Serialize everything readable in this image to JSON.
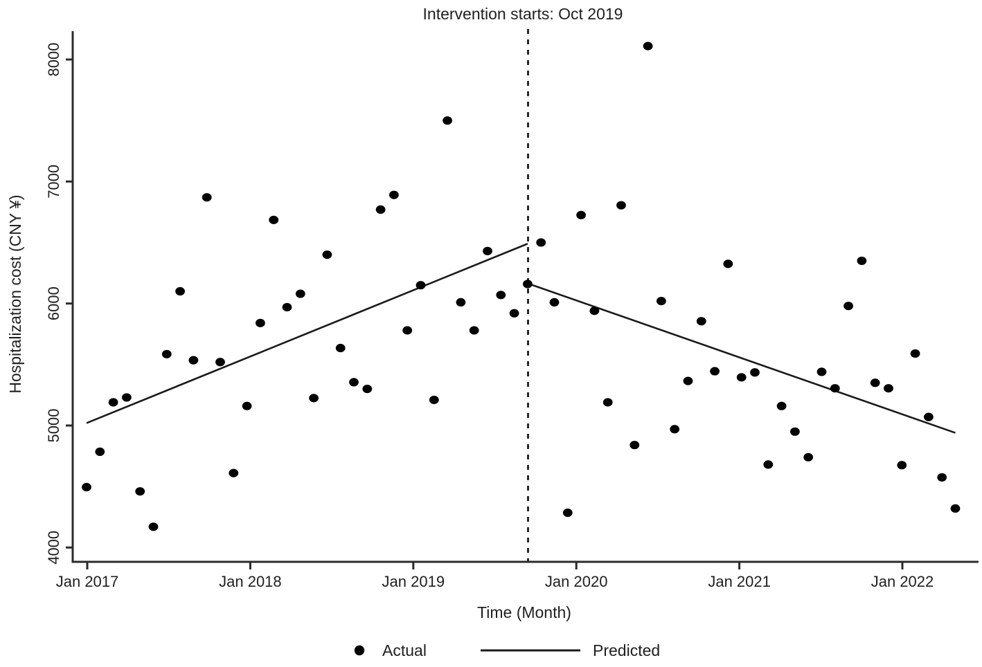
{
  "chart_data": {
    "type": "scatter",
    "title": "Intervention starts: Oct 2019",
    "xlabel": "Time (Month)",
    "ylabel": "Hospitalization cost (CNY ¥)",
    "ylim": [
      4000,
      8000
    ],
    "y_ticks": [
      4000,
      5000,
      6000,
      7000,
      8000
    ],
    "x_ticks": [
      "Jan 2017",
      "Jan 2018",
      "Jan 2019",
      "Jan 2020",
      "Jan 2021",
      "Jan 2022"
    ],
    "grid": false,
    "legend": {
      "position": "bottom",
      "actual": "Actual",
      "predicted": "Predicted"
    },
    "intervention": {
      "month": "Oct 2019",
      "month_index": 33
    },
    "colors": {
      "points": "#000000",
      "line": "#1a1a1a",
      "dashed_line": "#1a1a1a",
      "axis": "#2b2b2b",
      "text": "#1f1f1f",
      "background": "#ffffff"
    },
    "series_actual": {
      "name": "Actual",
      "points": [
        {
          "month": "Jan 2017",
          "value": 4495
        },
        {
          "month": "Feb 2017",
          "value": 4785
        },
        {
          "month": "Mar 2017",
          "value": 5190
        },
        {
          "month": "Apr 2017",
          "value": 5230
        },
        {
          "month": "May 2017",
          "value": 4460
        },
        {
          "month": "Jun 2017",
          "value": 4170
        },
        {
          "month": "Jul 2017",
          "value": 5585
        },
        {
          "month": "Aug 2017",
          "value": 6100
        },
        {
          "month": "Sep 2017",
          "value": 5535
        },
        {
          "month": "Oct 2017",
          "value": 6870
        },
        {
          "month": "Nov 2017",
          "value": 5520
        },
        {
          "month": "Dec 2017",
          "value": 4610
        },
        {
          "month": "Jan 2018",
          "value": 5160
        },
        {
          "month": "Feb 2018",
          "value": 5840
        },
        {
          "month": "Mar 2018",
          "value": 6685
        },
        {
          "month": "Apr 2018",
          "value": 5970
        },
        {
          "month": "May 2018",
          "value": 6080
        },
        {
          "month": "Jun 2018",
          "value": 5225
        },
        {
          "month": "Jul 2018",
          "value": 6400
        },
        {
          "month": "Aug 2018",
          "value": 5635
        },
        {
          "month": "Sep 2018",
          "value": 5355
        },
        {
          "month": "Oct 2018",
          "value": 5300
        },
        {
          "month": "Nov 2018",
          "value": 6770
        },
        {
          "month": "Dec 2018",
          "value": 6890
        },
        {
          "month": "Jan 2019",
          "value": 5780
        },
        {
          "month": "Feb 2019",
          "value": 6150
        },
        {
          "month": "Mar 2019",
          "value": 5210
        },
        {
          "month": "Apr 2019",
          "value": 7500
        },
        {
          "month": "May 2019",
          "value": 6010
        },
        {
          "month": "Jun 2019",
          "value": 5780
        },
        {
          "month": "Jul 2019",
          "value": 6430
        },
        {
          "month": "Aug 2019",
          "value": 6070
        },
        {
          "month": "Sep 2019",
          "value": 5920
        },
        {
          "month": "Oct 2019",
          "value": 6160
        },
        {
          "month": "Nov 2019",
          "value": 6500
        },
        {
          "month": "Dec 2019",
          "value": 6010
        },
        {
          "month": "Jan 2020",
          "value": 4285
        },
        {
          "month": "Feb 2020",
          "value": 6725
        },
        {
          "month": "Mar 2020",
          "value": 5940
        },
        {
          "month": "Apr 2020",
          "value": 5190
        },
        {
          "month": "May 2020",
          "value": 6805
        },
        {
          "month": "Jun 2020",
          "value": 4840
        },
        {
          "month": "Jul 2020",
          "value": 8110
        },
        {
          "month": "Aug 2020",
          "value": 6020
        },
        {
          "month": "Sep 2020",
          "value": 4970
        },
        {
          "month": "Oct 2020",
          "value": 5365
        },
        {
          "month": "Nov 2020",
          "value": 5855
        },
        {
          "month": "Dec 2020",
          "value": 5445
        },
        {
          "month": "Jan 2021",
          "value": 6325
        },
        {
          "month": "Feb 2021",
          "value": 5395
        },
        {
          "month": "Mar 2021",
          "value": 5435
        },
        {
          "month": "Apr 2021",
          "value": 4680
        },
        {
          "month": "May 2021",
          "value": 5160
        },
        {
          "month": "Jun 2021",
          "value": 4950
        },
        {
          "month": "Jul 2021",
          "value": 4740
        },
        {
          "month": "Aug 2021",
          "value": 5440
        },
        {
          "month": "Sep 2021",
          "value": 5305
        },
        {
          "month": "Oct 2021",
          "value": 5980
        },
        {
          "month": "Nov 2021",
          "value": 6350
        },
        {
          "month": "Dec 2021",
          "value": 5350
        },
        {
          "month": "Jan 2022",
          "value": 5305
        },
        {
          "month": "Feb 2022",
          "value": 4675
        },
        {
          "month": "Mar 2022",
          "value": 5590
        },
        {
          "month": "Apr 2022",
          "value": 5070
        },
        {
          "month": "May 2022",
          "value": 4575
        },
        {
          "month": "Jun 2022",
          "value": 4320
        }
      ]
    },
    "series_predicted": {
      "name": "Predicted",
      "segments": [
        {
          "from_month": "Jan 2017",
          "from_index": 0,
          "from_value": 5020,
          "to_month": "Oct 2019",
          "to_index": 33,
          "to_value": 6490
        },
        {
          "from_month": "Oct 2019",
          "from_index": 33,
          "from_value": 6165,
          "to_month": "Jun 2022",
          "to_index": 65,
          "to_value": 4940
        }
      ]
    }
  }
}
